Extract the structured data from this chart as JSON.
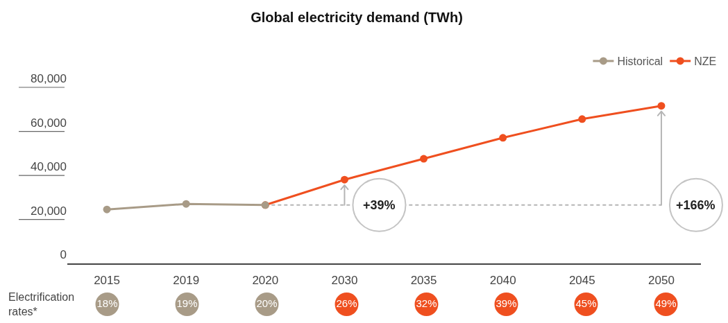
{
  "chart_data": [
    {
      "type": "line",
      "title": "Global electricity demand (TWh)",
      "categories": [
        "2015",
        "2019",
        "2020",
        "2030",
        "2035",
        "2040",
        "2045",
        "2050"
      ],
      "series": [
        {
          "name": "Historical",
          "color": "#a89b87",
          "values": [
            20500,
            23000,
            22500,
            null,
            null,
            null,
            null,
            null
          ]
        },
        {
          "name": "NZE",
          "color": "#ef4f1f",
          "values": [
            null,
            null,
            22500,
            34000,
            43500,
            53000,
            61500,
            67500
          ]
        }
      ],
      "ylim": [
        -4000,
        80000
      ],
      "yticks": [
        0,
        {
          "value": 20000,
          "label": "20,000"
        },
        {
          "value": 40000,
          "label": "40,000"
        },
        {
          "value": 60000,
          "label": "60,000"
        },
        {
          "value": 80000,
          "label": "80,000"
        }
      ],
      "marker": "circle",
      "legend": "top right",
      "ref_lines": [
        {
          "axis": "y",
          "value": 22500,
          "color": "#b5b5b5",
          "line_style": "dashed"
        }
      ],
      "annotations": [
        {
          "text": "+39%",
          "x": "2030",
          "y": 22500
        },
        {
          "text": "+166%",
          "x": "2050",
          "y": 22500
        }
      ]
    },
    {
      "type": "other",
      "ylabel": "Electrification rates*",
      "categories": [
        "18%",
        "19%",
        "20%",
        "26%",
        "32%",
        "39%",
        "45%",
        "49%"
      ],
      "colors": [
        "#a89b87",
        "#a89b87",
        "#a89b87",
        "#ef4f1f",
        "#ef4f1f",
        "#ef4f1f",
        "#ef4f1f",
        "#ef4f1f"
      ]
    }
  ]
}
